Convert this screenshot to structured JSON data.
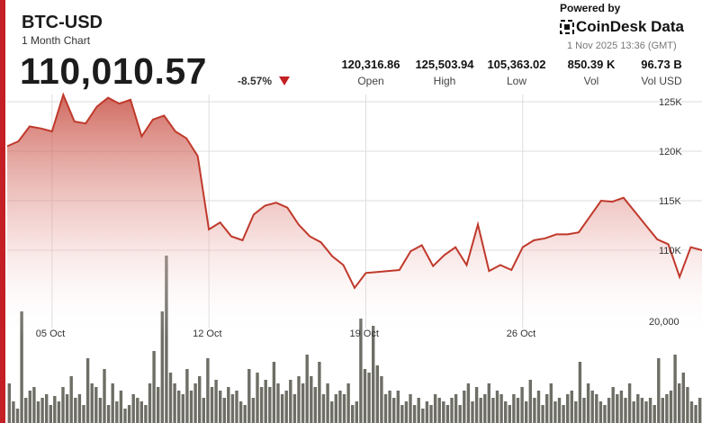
{
  "header": {
    "symbol": "BTC-USD",
    "period": "1 Month Chart",
    "price": "110,010.57",
    "change": "-8.57%"
  },
  "branding": {
    "powered_by": "Powered by",
    "logo_text": "CoinDesk Data",
    "timestamp": "1 Nov 2025 13:36 (GMT)"
  },
  "stats": [
    {
      "value": "120,316.86",
      "label": "Open"
    },
    {
      "value": "125,503.94",
      "label": "High"
    },
    {
      "value": "105,363.02",
      "label": "Low"
    },
    {
      "value": "850.39 K",
      "label": "Vol"
    },
    {
      "value": "96.73 B",
      "label": "Vol USD"
    }
  ],
  "colors": {
    "accent": "#c41f24",
    "line": "#c0392b",
    "volume_bar": "#6e6e66",
    "grid": "#dddddd"
  },
  "chart_data": {
    "type": "area",
    "title": "BTC-USD",
    "x_tick_labels": [
      "05 Oct",
      "12 Oct",
      "19 Oct",
      "26 Oct"
    ],
    "y_tick_labels": [
      "125K",
      "120K",
      "115K",
      "110K"
    ],
    "ylim": [
      104000,
      127000
    ],
    "grid": true,
    "price_series": {
      "name": "BTC-USD",
      "x": [
        0,
        0.5,
        1,
        1.5,
        2,
        2.5,
        3,
        3.5,
        4,
        4.5,
        5,
        5.5,
        6,
        6.5,
        7,
        7.5,
        8,
        8.5,
        9,
        9.5,
        10,
        10.5,
        11,
        11.5,
        12,
        12.5,
        13,
        13.5,
        14,
        14.5,
        15,
        15.5,
        16,
        16.5,
        17,
        17.5,
        18,
        18.5,
        19,
        19.5,
        20,
        20.5,
        21,
        21.5,
        22,
        22.5,
        23,
        23.5,
        24,
        24.5,
        25,
        25.5,
        26,
        26.5,
        27,
        27.5,
        28,
        28.5,
        29,
        29.5,
        30,
        30.5,
        31
      ],
      "y": [
        120500,
        121000,
        122500,
        122300,
        122000,
        125700,
        123000,
        122800,
        124500,
        125400,
        124800,
        125200,
        121500,
        123200,
        123600,
        122000,
        121300,
        119500,
        112100,
        112800,
        111400,
        111000,
        113600,
        114500,
        114800,
        114300,
        112600,
        111400,
        110800,
        109400,
        108500,
        106200,
        107700,
        107800,
        107900,
        108000,
        109900,
        110500,
        108400,
        109500,
        110300,
        108500,
        112600,
        107900,
        108500,
        108000,
        110300,
        111000,
        111200,
        111600,
        111600,
        111800,
        113400,
        115000,
        114900,
        115300,
        113900,
        112500,
        111100,
        110600,
        107300,
        110300,
        110000
      ],
      "x_tick_positions": [
        2,
        9,
        16,
        23
      ]
    },
    "volume_series": {
      "name": "Vol",
      "tick_label": "20,000",
      "values": [
        0.22,
        0.12,
        0.08,
        0.62,
        0.14,
        0.18,
        0.2,
        0.12,
        0.14,
        0.16,
        0.1,
        0.15,
        0.12,
        0.2,
        0.16,
        0.26,
        0.14,
        0.16,
        0.1,
        0.36,
        0.22,
        0.2,
        0.14,
        0.3,
        0.1,
        0.22,
        0.12,
        0.18,
        0.08,
        0.1,
        0.16,
        0.14,
        0.12,
        0.1,
        0.22,
        0.4,
        0.2,
        0.62,
        0.93,
        0.28,
        0.22,
        0.18,
        0.16,
        0.3,
        0.18,
        0.22,
        0.26,
        0.14,
        0.36,
        0.2,
        0.24,
        0.18,
        0.14,
        0.2,
        0.16,
        0.18,
        0.12,
        0.1,
        0.3,
        0.14,
        0.28,
        0.2,
        0.24,
        0.2,
        0.34,
        0.22,
        0.16,
        0.18,
        0.24,
        0.16,
        0.26,
        0.22,
        0.38,
        0.26,
        0.2,
        0.34,
        0.16,
        0.22,
        0.12,
        0.16,
        0.18,
        0.16,
        0.22,
        0.1,
        0.12,
        0.58,
        0.3,
        0.28,
        0.54,
        0.32,
        0.26,
        0.16,
        0.18,
        0.14,
        0.18,
        0.1,
        0.12,
        0.16,
        0.1,
        0.14,
        0.08,
        0.12,
        0.1,
        0.16,
        0.14,
        0.12,
        0.1,
        0.14,
        0.16,
        0.1,
        0.18,
        0.22,
        0.12,
        0.2,
        0.14,
        0.16,
        0.22,
        0.14,
        0.18,
        0.16,
        0.12,
        0.1,
        0.16,
        0.14,
        0.2,
        0.12,
        0.24,
        0.14,
        0.18,
        0.1,
        0.16,
        0.22,
        0.12,
        0.14,
        0.1,
        0.16,
        0.18,
        0.12,
        0.34,
        0.14,
        0.22,
        0.18,
        0.16,
        0.12,
        0.1,
        0.14,
        0.2,
        0.16,
        0.18,
        0.14,
        0.22,
        0.12,
        0.16,
        0.14,
        0.12,
        0.14,
        0.1,
        0.36,
        0.14,
        0.16,
        0.18,
        0.38,
        0.22,
        0.28,
        0.2,
        0.12,
        0.1,
        0.14
      ]
    }
  }
}
